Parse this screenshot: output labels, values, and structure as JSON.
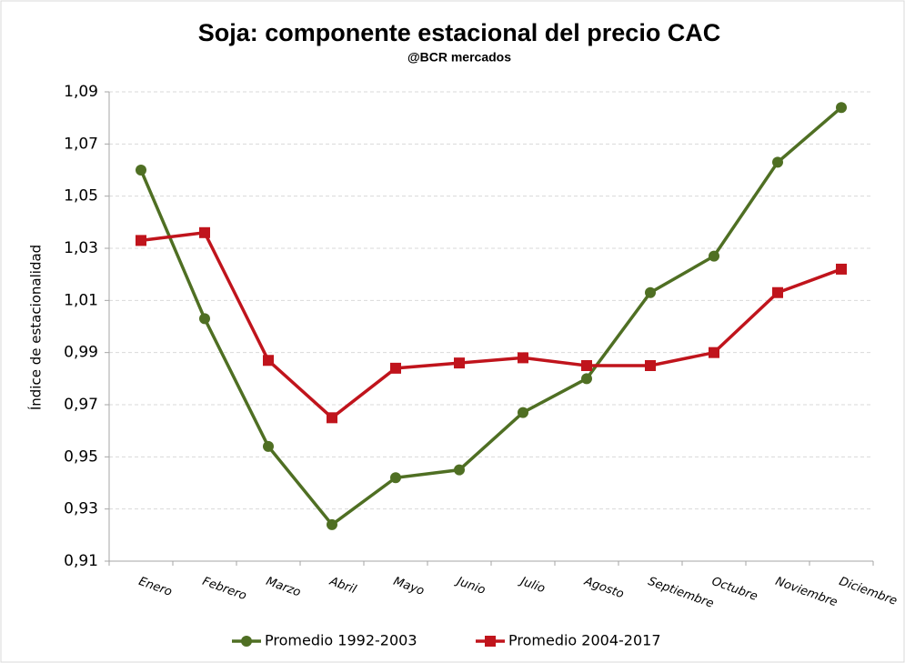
{
  "chart_data": {
    "type": "line",
    "title": "Soja: componente estacional del precio CAC",
    "subtitle": "@BCR mercados",
    "y_label": "Índice de estacionalidad",
    "categories": [
      "Enero",
      "Febrero",
      "Marzo",
      "Abril",
      "Mayo",
      "Junio",
      "Julio",
      "Agosto",
      "Septiembre",
      "Octubre",
      "Noviembre",
      "Diciembre"
    ],
    "series": [
      {
        "name": "Promedio 1992-2003",
        "color": "#4f6f23",
        "marker": "circle",
        "values": [
          1.06,
          1.003,
          0.954,
          0.924,
          0.942,
          0.945,
          0.967,
          0.98,
          1.013,
          1.027,
          1.063,
          1.084
        ]
      },
      {
        "name": "Promedio 2004-2017",
        "color": "#c0141c",
        "marker": "square",
        "values": [
          1.033,
          1.036,
          0.987,
          0.965,
          0.984,
          0.986,
          0.988,
          0.985,
          0.985,
          0.99,
          1.013,
          1.022
        ]
      }
    ],
    "ylim": [
      0.91,
      1.09
    ],
    "yticks": [
      {
        "value": 0.91,
        "label": "0,91"
      },
      {
        "value": 0.93,
        "label": "0,93"
      },
      {
        "value": 0.95,
        "label": "0,95"
      },
      {
        "value": 0.97,
        "label": "0,97"
      },
      {
        "value": 0.99,
        "label": "0,99"
      },
      {
        "value": 1.01,
        "label": "1,01"
      },
      {
        "value": 1.03,
        "label": "1,03"
      },
      {
        "value": 1.05,
        "label": "1,05"
      },
      {
        "value": 1.07,
        "label": "1,07"
      },
      {
        "value": 1.09,
        "label": "1,09"
      }
    ],
    "grid": true,
    "legend": "bottom"
  }
}
